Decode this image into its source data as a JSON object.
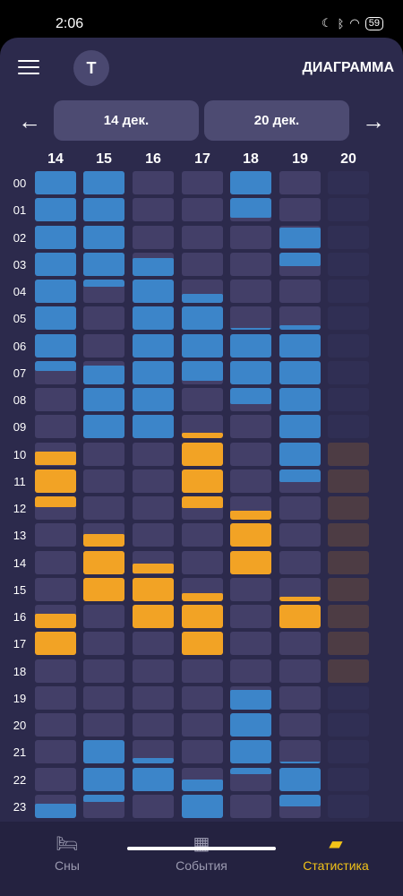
{
  "status_bar": {
    "time": "2:06",
    "battery": "59"
  },
  "header": {
    "avatar_letter": "T",
    "title": "ДИАГРАММА"
  },
  "date_range": {
    "start": "14 дек.",
    "end": "20 дек."
  },
  "days": [
    "14",
    "15",
    "16",
    "17",
    "18",
    "19",
    "20"
  ],
  "hours": [
    "00",
    "01",
    "02",
    "03",
    "04",
    "05",
    "06",
    "07",
    "08",
    "09",
    "10",
    "11",
    "12",
    "13",
    "14",
    "15",
    "16",
    "17",
    "18",
    "19",
    "20",
    "21",
    "22",
    "23"
  ],
  "legend_colors": {
    "sleep": "#3c85c9",
    "event": "#f2a325"
  },
  "schedule": [
    {
      "day": "14",
      "cells": [
        [
          "s",
          0,
          1
        ],
        [
          "s",
          0,
          1
        ],
        [
          "s",
          0,
          1
        ],
        [
          "s",
          0,
          1
        ],
        [
          "s",
          0,
          1
        ],
        [
          "s",
          0,
          1
        ],
        [
          "s",
          0,
          1
        ],
        [
          "s",
          0,
          0.45
        ],
        null,
        null,
        [
          "e",
          0.4,
          1
        ],
        [
          "e",
          0,
          1
        ],
        [
          "e",
          0,
          0.45
        ],
        null,
        null,
        null,
        [
          "e",
          0.4,
          1
        ],
        [
          "e",
          0,
          1
        ],
        null,
        null,
        null,
        null,
        null,
        [
          "s",
          0.4,
          1
        ]
      ]
    },
    {
      "day": "15",
      "cells": [
        [
          "s",
          0,
          1
        ],
        [
          "s",
          0,
          1
        ],
        [
          "s",
          0,
          1
        ],
        [
          "s",
          0,
          1
        ],
        [
          "s",
          0,
          0.3
        ],
        null,
        null,
        [
          "s",
          0.2,
          1
        ],
        [
          "s",
          0,
          1
        ],
        [
          "s",
          0,
          1
        ],
        null,
        null,
        null,
        [
          "e",
          0.45,
          1
        ],
        [
          "e",
          0,
          1
        ],
        [
          "e",
          0,
          1
        ],
        null,
        null,
        null,
        null,
        null,
        [
          "s",
          0,
          1
        ],
        [
          "s",
          0,
          1
        ],
        [
          "s",
          0,
          0.3
        ]
      ]
    },
    {
      "day": "16",
      "cells": [
        null,
        null,
        null,
        [
          "s",
          0.25,
          1
        ],
        [
          "s",
          0,
          1
        ],
        [
          "s",
          0,
          1
        ],
        [
          "s",
          0,
          1
        ],
        [
          "s",
          0,
          1
        ],
        [
          "s",
          0,
          1
        ],
        [
          "s",
          0,
          1
        ],
        null,
        null,
        null,
        null,
        [
          "e",
          0.55,
          1
        ],
        [
          "e",
          0,
          1
        ],
        [
          "e",
          0,
          1
        ],
        null,
        null,
        null,
        null,
        [
          "s",
          0.75,
          1
        ],
        [
          "s",
          0,
          1
        ],
        null
      ]
    },
    {
      "day": "17",
      "cells": [
        null,
        null,
        null,
        null,
        [
          "s",
          0.6,
          1
        ],
        [
          "s",
          0,
          1
        ],
        [
          "s",
          0,
          1
        ],
        [
          "s",
          0,
          0.85
        ],
        null,
        [
          "e",
          0.75,
          1
        ],
        [
          "e",
          0,
          1
        ],
        [
          "e",
          0,
          1
        ],
        [
          "e",
          0,
          0.5
        ],
        null,
        null,
        [
          "e",
          0.65,
          1
        ],
        [
          "e",
          0,
          1
        ],
        [
          "e",
          0,
          1
        ],
        null,
        null,
        null,
        null,
        [
          "s",
          0.5,
          1
        ],
        [
          "s",
          0,
          1
        ]
      ]
    },
    {
      "day": "18",
      "cells": [
        [
          "s",
          0,
          1
        ],
        [
          "s",
          0,
          0.85
        ],
        null,
        null,
        null,
        [
          "s",
          0.9,
          1
        ],
        [
          "s",
          0,
          1
        ],
        [
          "s",
          0,
          1
        ],
        [
          "s",
          0,
          0.7
        ],
        null,
        null,
        null,
        [
          "e",
          0.6,
          1
        ],
        [
          "e",
          0,
          1
        ],
        [
          "e",
          0,
          1
        ],
        null,
        null,
        null,
        null,
        [
          "s",
          0.15,
          1
        ],
        [
          "s",
          0,
          1
        ],
        [
          "s",
          0,
          1
        ],
        [
          "s",
          0,
          0.3
        ],
        null
      ]
    },
    {
      "day": "19",
      "cells": [
        null,
        null,
        [
          "s",
          0.1,
          1
        ],
        [
          "s",
          0,
          0.6
        ],
        null,
        [
          "s",
          0.8,
          1
        ],
        [
          "s",
          0,
          1
        ],
        [
          "s",
          0,
          1
        ],
        [
          "s",
          0,
          1
        ],
        [
          "s",
          0,
          1
        ],
        [
          "s",
          0,
          1
        ],
        [
          "s",
          0,
          0.55
        ],
        null,
        null,
        null,
        [
          "e",
          0.8,
          1
        ],
        [
          "e",
          0,
          1
        ],
        null,
        null,
        null,
        null,
        [
          "s",
          0.9,
          1
        ],
        [
          "s",
          0,
          1
        ],
        [
          "s",
          0,
          0.5
        ]
      ]
    },
    {
      "day": "20",
      "cells": [
        null,
        null,
        null,
        null,
        null,
        null,
        null,
        null,
        null,
        null,
        null,
        null,
        null,
        null,
        null,
        null,
        null,
        null,
        null,
        null,
        null,
        null,
        null,
        null
      ],
      "future": true,
      "brown_hours": [
        10,
        11,
        12,
        13,
        14,
        15,
        16,
        17,
        18
      ]
    }
  ],
  "nav": [
    {
      "label": "Сны",
      "icon": "bed-icon"
    },
    {
      "label": "События",
      "icon": "calendar-icon"
    },
    {
      "label": "Статистика",
      "icon": "chart-icon",
      "active": true
    }
  ]
}
